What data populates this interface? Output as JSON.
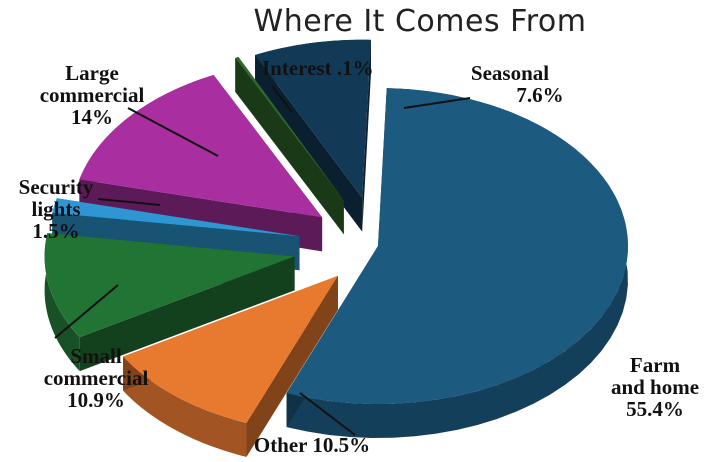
{
  "chart_data": {
    "type": "pie",
    "title": "Where It Comes From",
    "slices": [
      {
        "label_lines": [
          "Farm",
          "and home"
        ],
        "value_text": "55.4%",
        "value": 55.4,
        "color": "#1d5a80"
      },
      {
        "label_lines": [
          "Other"
        ],
        "value_text": "10.5%",
        "value": 10.5,
        "color": "#e87a30"
      },
      {
        "label_lines": [
          "Small",
          "commercial"
        ],
        "value_text": "10.9%",
        "value": 10.9,
        "color": "#227435"
      },
      {
        "label_lines": [
          "Security",
          "lights"
        ],
        "value_text": "1.5%",
        "value": 1.5,
        "color": "#2e96d2"
      },
      {
        "label_lines": [
          "Large",
          "commercial"
        ],
        "value_text": "14%",
        "value": 14,
        "color": "#a92fa0"
      },
      {
        "label_lines": [
          "Interest"
        ],
        "value_text": ".1%",
        "value": 0.1,
        "color": "#2f6a2a"
      },
      {
        "label_lines": [
          "Seasonal"
        ],
        "value_text": "7.6%",
        "value": 7.6,
        "color": "#123a57"
      }
    ]
  }
}
